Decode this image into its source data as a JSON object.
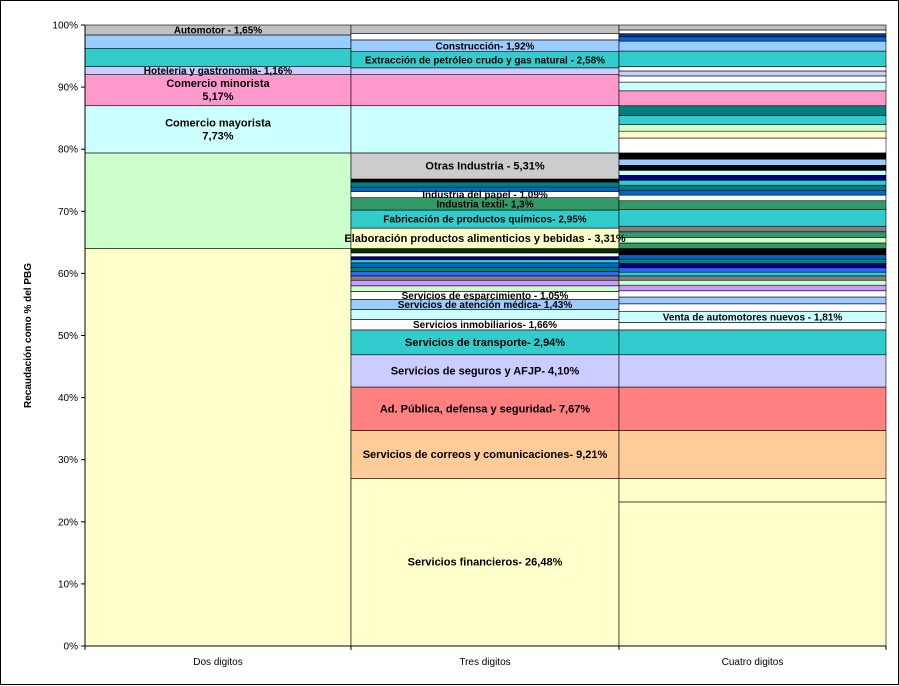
{
  "chart_data": {
    "type": "stacked-bar-100",
    "title": "",
    "ylabel": "Recaudación como % del PBG",
    "ylim": [
      0,
      100
    ],
    "yticks": [
      "0%",
      "10%",
      "20%",
      "30%",
      "40%",
      "50%",
      "60%",
      "70%",
      "80%",
      "90%",
      "100%"
    ],
    "categories": [
      "Dos digitos",
      "Tres digitos",
      "Cuatro digitos"
    ],
    "grid": false,
    "columns": [
      {
        "name": "Dos digitos",
        "segments": [
          {
            "from": 0,
            "to": 64.0,
            "color": "#ffffcc",
            "label": ""
          },
          {
            "from": 64.0,
            "to": 79.4,
            "color": "#ccffcc",
            "label": ""
          },
          {
            "from": 79.4,
            "to": 87.0,
            "color": "#ccffff",
            "label": "Comercio mayorista\n7,73%"
          },
          {
            "from": 87.0,
            "to": 92.0,
            "color": "#ff99cc",
            "label": "Comercio minorista\n5,17%"
          },
          {
            "from": 92.0,
            "to": 93.3,
            "color": "#ccccff",
            "label": "Hotelería y gastronomía- 1,16%"
          },
          {
            "from": 93.3,
            "to": 96.2,
            "color": "#33cccc",
            "label": ""
          },
          {
            "from": 96.2,
            "to": 98.4,
            "color": "#99ccff",
            "label": ""
          },
          {
            "from": 98.4,
            "to": 100,
            "color": "#c0c0c0",
            "label": "Automotor - 1,65%"
          }
        ]
      },
      {
        "name": "Tres digitos",
        "segments": [
          {
            "from": 0,
            "to": 27.0,
            "color": "#ffffcc",
            "label": "Servicios financieros- 26,48%"
          },
          {
            "from": 27.0,
            "to": 34.7,
            "color": "#ffcc99",
            "label": "Servicios de correos y comunicaciones- 9,21%"
          },
          {
            "from": 34.7,
            "to": 41.7,
            "color": "#ff8080",
            "label": "Ad. Pública, defensa y seguridad- 7,67%"
          },
          {
            "from": 41.7,
            "to": 46.9,
            "color": "#ccccff",
            "label": "Servicios de seguros y AFJP- 4,10%"
          },
          {
            "from": 46.9,
            "to": 50.9,
            "color": "#33cccc",
            "label": "Servicios de transporte- 2,94%"
          },
          {
            "from": 50.9,
            "to": 52.6,
            "color": "#ffffff",
            "label": "Servicios inmobiliarios- 1,66%"
          },
          {
            "from": 52.6,
            "to": 54.2,
            "color": "#ccffff",
            "label": ""
          },
          {
            "from": 54.2,
            "to": 55.8,
            "color": "#99ccff",
            "label": "Servicios de atención médica- 1,43%"
          },
          {
            "from": 55.8,
            "to": 57.1,
            "color": "#ffffff",
            "label": "Servicios de esparcimiento - 1,05%"
          },
          {
            "from": 57.1,
            "to": 58.0,
            "color": "#ccffcc",
            "label": ""
          },
          {
            "from": 58.0,
            "to": 58.9,
            "color": "#cc99ff",
            "label": ""
          },
          {
            "from": 58.9,
            "to": 59.6,
            "color": "#808080",
            "label": ""
          },
          {
            "from": 59.6,
            "to": 60.3,
            "color": "#3366ff",
            "label": ""
          },
          {
            "from": 60.3,
            "to": 61.0,
            "color": "#008080",
            "label": ""
          },
          {
            "from": 61.0,
            "to": 61.7,
            "color": "#0066cc",
            "label": ""
          },
          {
            "from": 61.7,
            "to": 62.2,
            "color": "#33cccc",
            "label": ""
          },
          {
            "from": 62.2,
            "to": 62.7,
            "color": "#000080",
            "label": ""
          },
          {
            "from": 62.7,
            "to": 63.3,
            "color": "#ffffff",
            "label": ""
          },
          {
            "from": 63.3,
            "to": 64.0,
            "color": "#003300",
            "label": ""
          },
          {
            "from": 64.0,
            "to": 67.3,
            "color": "#ffffcc",
            "label": "Elaboración productos alimenticios y bebidas - 3,31%"
          },
          {
            "from": 67.3,
            "to": 70.2,
            "color": "#33cccc",
            "label": "Fabricación de productos químicos- 2,95%"
          },
          {
            "from": 70.2,
            "to": 72.2,
            "color": "#339966",
            "label": "Industria textil- 1,3%"
          },
          {
            "from": 72.2,
            "to": 73.2,
            "color": "#ffffff",
            "label": "Industria del papel - 1,09%"
          },
          {
            "from": 73.2,
            "to": 73.9,
            "color": "#0066cc",
            "label": ""
          },
          {
            "from": 73.9,
            "to": 74.7,
            "color": "#008080",
            "label": ""
          },
          {
            "from": 74.7,
            "to": 75.2,
            "color": "#000000",
            "label": ""
          },
          {
            "from": 75.2,
            "to": 79.4,
            "color": "#cccccc",
            "label": "Otras Industria - 5,31%"
          },
          {
            "from": 79.4,
            "to": 87.0,
            "color": "#ccffff",
            "label": ""
          },
          {
            "from": 87.0,
            "to": 92.0,
            "color": "#ff99cc",
            "label": ""
          },
          {
            "from": 92.0,
            "to": 93.1,
            "color": "#ccccff",
            "label": ""
          },
          {
            "from": 93.1,
            "to": 95.7,
            "color": "#33cccc",
            "label": "Extracción de petróleo crudo y gas natural - 2,58%"
          },
          {
            "from": 95.7,
            "to": 97.6,
            "color": "#99ccff",
            "label": "Construcción- 1,92%"
          },
          {
            "from": 97.6,
            "to": 98.6,
            "color": "#ffffff",
            "label": ""
          },
          {
            "from": 98.6,
            "to": 100,
            "color": "#c0c0c0",
            "label": ""
          }
        ]
      },
      {
        "name": "Cuatro digitos",
        "segments": [
          {
            "from": 0,
            "to": 23.2,
            "color": "#ffffcc",
            "label": ""
          },
          {
            "from": 23.2,
            "to": 27.0,
            "color": "#ffffcc",
            "label": ""
          },
          {
            "from": 27.0,
            "to": 34.7,
            "color": "#ffcc99",
            "label": ""
          },
          {
            "from": 34.7,
            "to": 41.7,
            "color": "#ff8080",
            "label": ""
          },
          {
            "from": 41.7,
            "to": 46.9,
            "color": "#ccccff",
            "label": ""
          },
          {
            "from": 46.9,
            "to": 50.9,
            "color": "#33cccc",
            "label": ""
          },
          {
            "from": 50.9,
            "to": 52.1,
            "color": "#ffffff",
            "label": ""
          },
          {
            "from": 52.1,
            "to": 53.9,
            "color": "#ccffff",
            "label": "Venta de automotores nuevos - 1,81%"
          },
          {
            "from": 53.9,
            "to": 55.1,
            "color": "#ffffff",
            "label": ""
          },
          {
            "from": 55.1,
            "to": 56.2,
            "color": "#99ccff",
            "label": ""
          },
          {
            "from": 56.2,
            "to": 57.2,
            "color": "#ffffff",
            "label": ""
          },
          {
            "from": 57.2,
            "to": 58.1,
            "color": "#cc99ff",
            "label": ""
          },
          {
            "from": 58.1,
            "to": 58.9,
            "color": "#ccffcc",
            "label": ""
          },
          {
            "from": 58.9,
            "to": 59.6,
            "color": "#808080",
            "label": ""
          },
          {
            "from": 59.6,
            "to": 60.2,
            "color": "#33cccc",
            "label": ""
          },
          {
            "from": 60.2,
            "to": 60.9,
            "color": "#3366ff",
            "label": ""
          },
          {
            "from": 60.9,
            "to": 61.6,
            "color": "#000080",
            "label": ""
          },
          {
            "from": 61.6,
            "to": 62.3,
            "color": "#008080",
            "label": ""
          },
          {
            "from": 62.3,
            "to": 63.0,
            "color": "#0066cc",
            "label": ""
          },
          {
            "from": 63.0,
            "to": 64.0,
            "color": "#000000",
            "label": ""
          },
          {
            "from": 64.0,
            "to": 64.9,
            "color": "#339966",
            "label": ""
          },
          {
            "from": 64.9,
            "to": 65.8,
            "color": "#ccffcc",
            "label": ""
          },
          {
            "from": 65.8,
            "to": 66.7,
            "color": "#339966",
            "label": ""
          },
          {
            "from": 66.7,
            "to": 67.6,
            "color": "#808080",
            "label": ""
          },
          {
            "from": 67.6,
            "to": 70.3,
            "color": "#33cccc",
            "label": ""
          },
          {
            "from": 70.3,
            "to": 71.7,
            "color": "#339966",
            "label": ""
          },
          {
            "from": 71.7,
            "to": 72.6,
            "color": "#ffffff",
            "label": ""
          },
          {
            "from": 72.6,
            "to": 73.4,
            "color": "#0066cc",
            "label": ""
          },
          {
            "from": 73.4,
            "to": 74.2,
            "color": "#008080",
            "label": ""
          },
          {
            "from": 74.2,
            "to": 75.0,
            "color": "#33cccc",
            "label": ""
          },
          {
            "from": 75.0,
            "to": 75.8,
            "color": "#000080",
            "label": ""
          },
          {
            "from": 75.8,
            "to": 76.6,
            "color": "#ccffff",
            "label": ""
          },
          {
            "from": 76.6,
            "to": 77.4,
            "color": "#000000",
            "label": ""
          },
          {
            "from": 77.4,
            "to": 78.4,
            "color": "#99ccff",
            "label": ""
          },
          {
            "from": 78.4,
            "to": 79.4,
            "color": "#000000",
            "label": ""
          },
          {
            "from": 79.4,
            "to": 81.8,
            "color": "#ffffff",
            "label": ""
          },
          {
            "from": 81.8,
            "to": 82.9,
            "color": "#ffffcc",
            "label": ""
          },
          {
            "from": 82.9,
            "to": 84.0,
            "color": "#ccffcc",
            "label": ""
          },
          {
            "from": 84.0,
            "to": 85.4,
            "color": "#33cccc",
            "label": ""
          },
          {
            "from": 85.4,
            "to": 87.0,
            "color": "#008080",
            "label": ""
          },
          {
            "from": 87.0,
            "to": 89.4,
            "color": "#ff99cc",
            "label": ""
          },
          {
            "from": 89.4,
            "to": 90.8,
            "color": "#ccffff",
            "label": ""
          },
          {
            "from": 90.8,
            "to": 91.8,
            "color": "#ffffff",
            "label": ""
          },
          {
            "from": 91.8,
            "to": 92.6,
            "color": "#ccccff",
            "label": ""
          },
          {
            "from": 92.6,
            "to": 93.3,
            "color": "#ffffff",
            "label": ""
          },
          {
            "from": 93.3,
            "to": 95.8,
            "color": "#33cccc",
            "label": ""
          },
          {
            "from": 95.8,
            "to": 97.4,
            "color": "#99ccff",
            "label": ""
          },
          {
            "from": 97.4,
            "to": 98.1,
            "color": "#0066cc",
            "label": ""
          },
          {
            "from": 98.1,
            "to": 98.6,
            "color": "#003399",
            "label": ""
          },
          {
            "from": 98.6,
            "to": 99.2,
            "color": "#ffffff",
            "label": ""
          },
          {
            "from": 99.2,
            "to": 100,
            "color": "#c0c0c0",
            "label": ""
          }
        ]
      }
    ]
  }
}
